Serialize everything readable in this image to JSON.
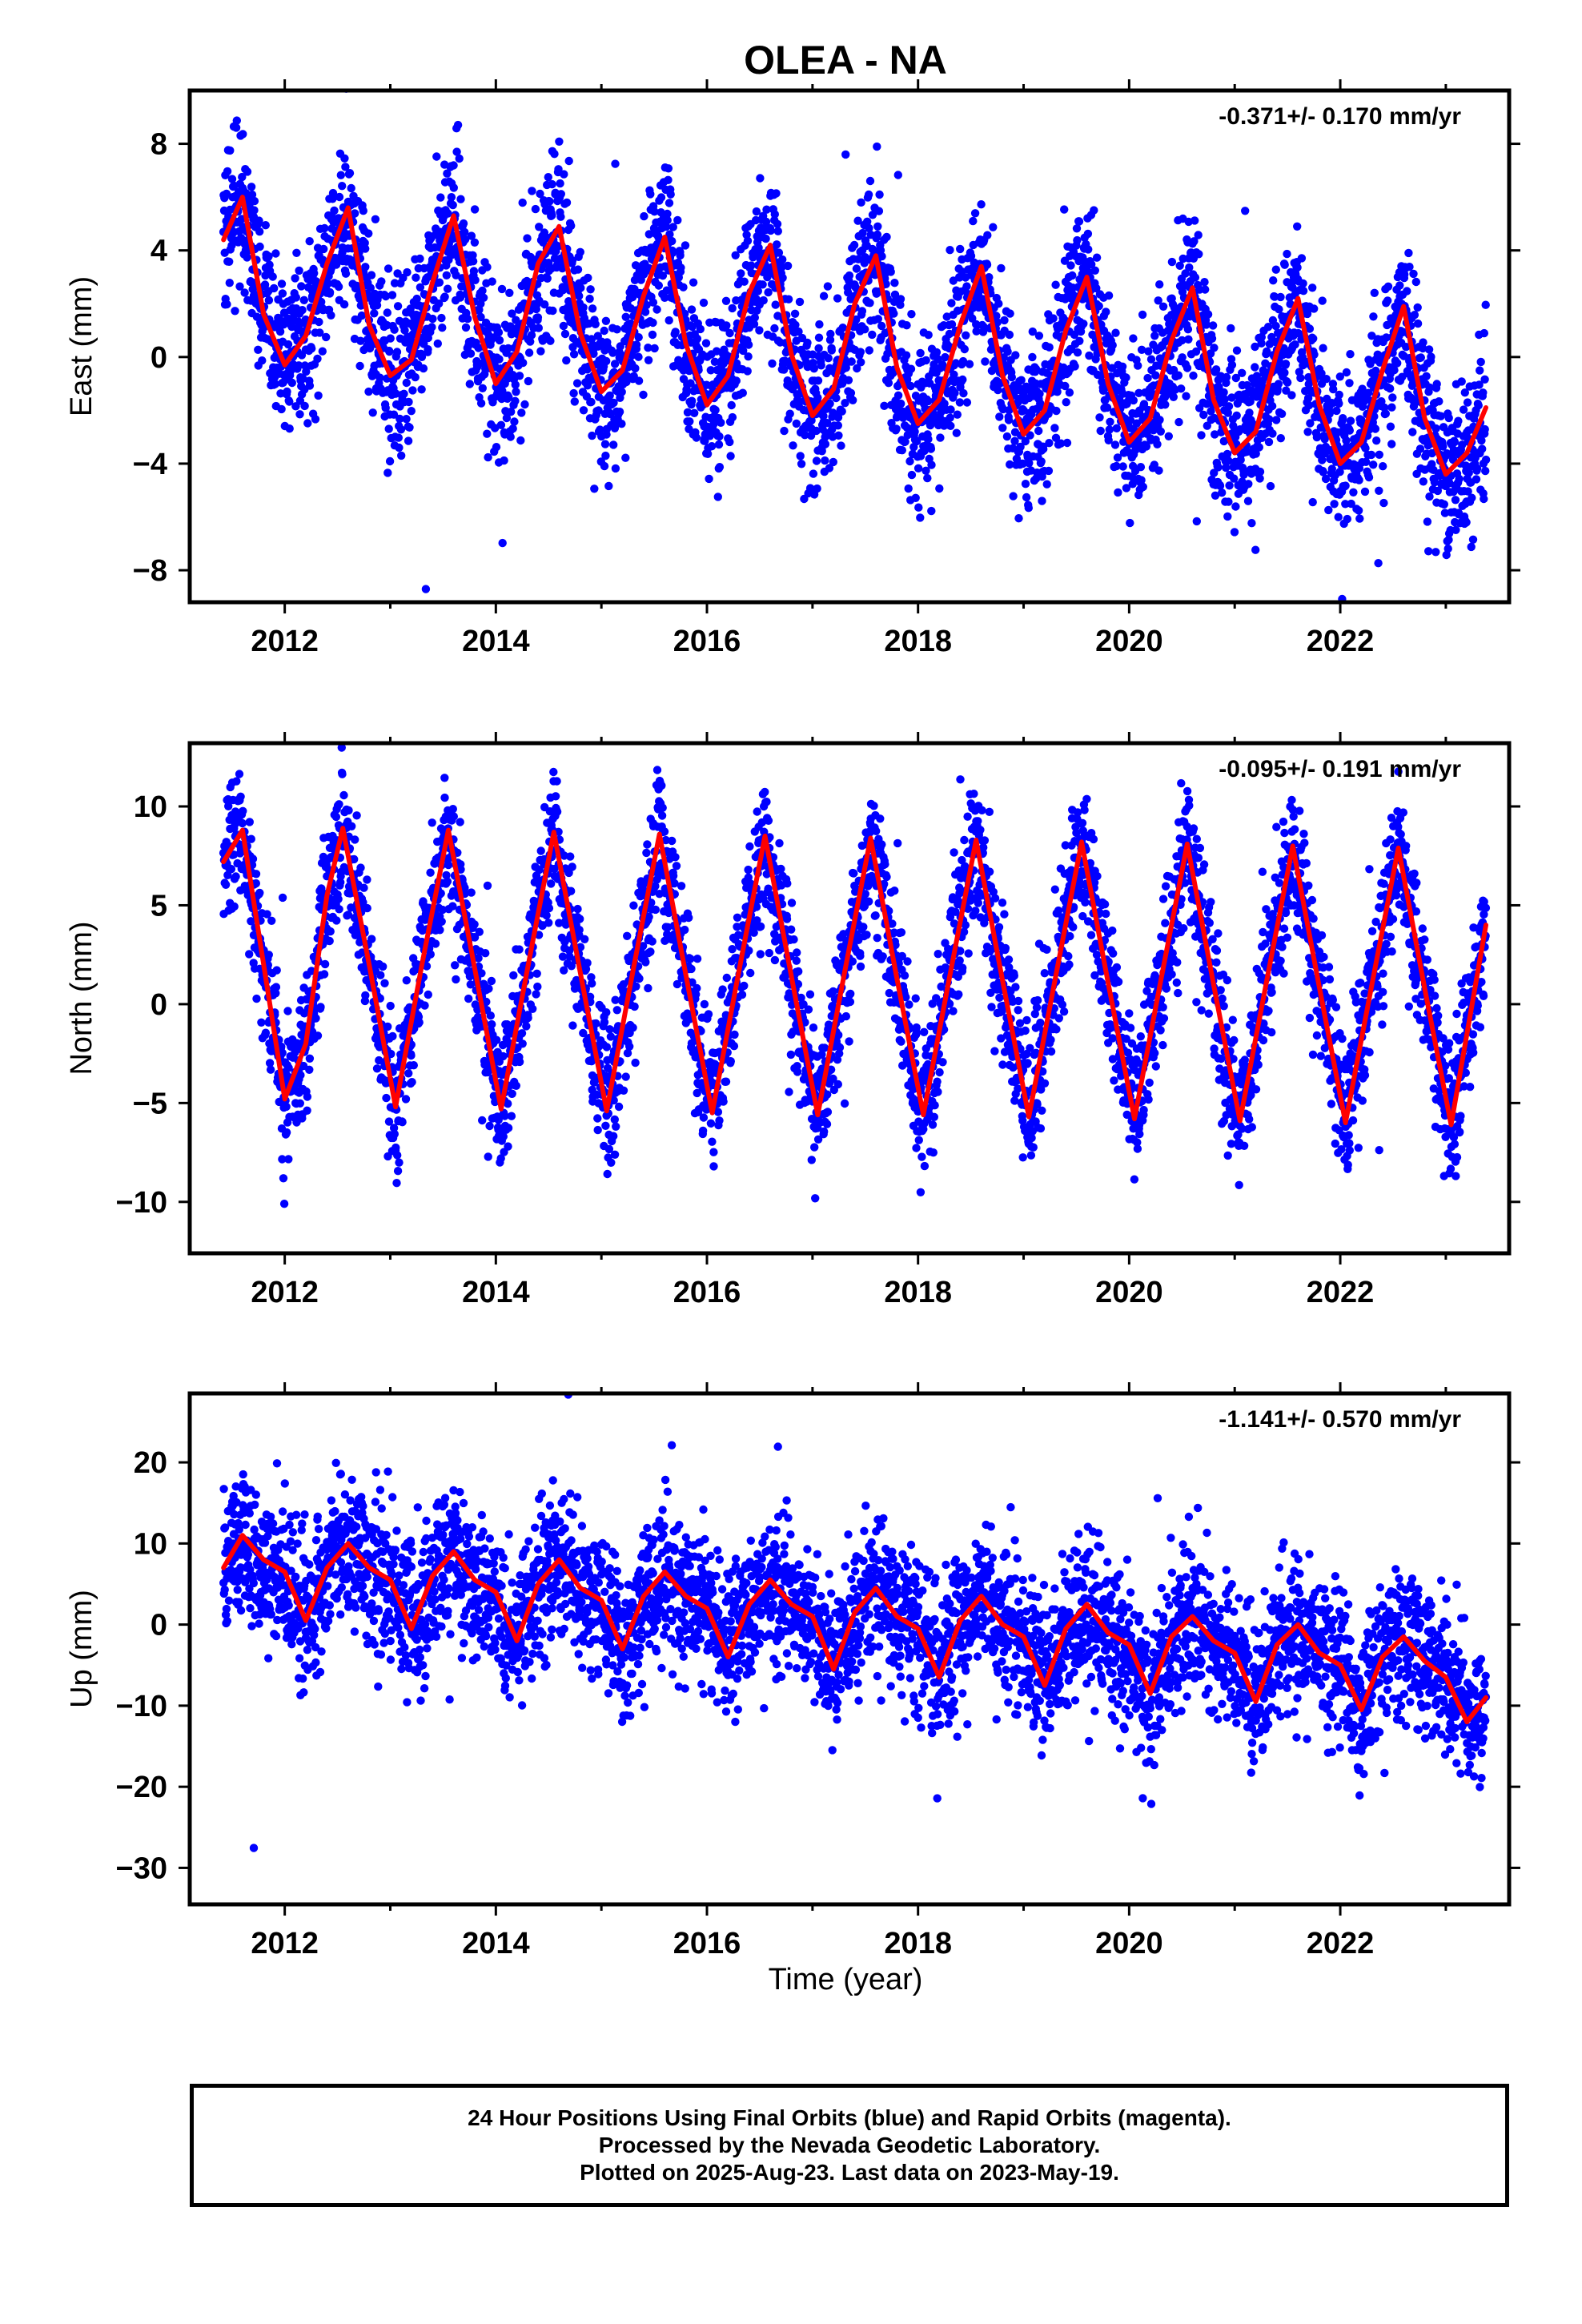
{
  "figure": {
    "title": "OLEA - NA",
    "xlabel": "Time (year)"
  },
  "chart_data": [
    {
      "type": "scatter",
      "ylabel": "East (mm)",
      "rate_text": "-0.371+/- 0.170 mm/yr",
      "xlim": [
        2011.1,
        2023.6
      ],
      "ylim": [
        -9.2,
        10.0
      ],
      "xticks": [
        2012,
        2014,
        2016,
        2018,
        2020,
        2022
      ],
      "yticks": [
        -8,
        -4,
        0,
        4,
        8
      ],
      "ytick_labels": [
        "−8",
        "−4",
        "0",
        "4",
        "8"
      ],
      "trend": {
        "offset": 1.2,
        "rate": -0.371,
        "amplitude": 3.3,
        "peak_phase": 0.58,
        "noise": 1.5
      },
      "series": [
        {
          "role": "daily positions",
          "color": "#0000ff",
          "x": [
            2011.42,
            2011.6,
            2011.8,
            2012.0,
            2012.2,
            2012.4,
            2012.6,
            2012.8,
            2013.0,
            2013.2,
            2013.4,
            2013.6,
            2013.8,
            2014.0,
            2014.2,
            2014.4,
            2014.6,
            2014.8,
            2015.0,
            2015.2,
            2015.4,
            2015.6,
            2015.8,
            2016.0,
            2016.2,
            2016.4,
            2016.6,
            2016.8,
            2017.0,
            2017.2,
            2017.4,
            2017.6,
            2017.8,
            2018.0,
            2018.2,
            2018.4,
            2018.6,
            2018.8,
            2019.0,
            2019.2,
            2019.4,
            2019.6,
            2019.8,
            2020.0,
            2020.2,
            2020.4,
            2020.6,
            2020.8,
            2021.0,
            2021.2,
            2021.4,
            2021.6,
            2021.8,
            2022.0,
            2022.2,
            2022.4,
            2022.6,
            2022.8,
            2023.0,
            2023.2,
            2023.38
          ],
          "y": [
            4.4,
            6.0,
            1.6,
            -0.3,
            0.8,
            3.5,
            5.6,
            1.2,
            -0.7,
            -0.1,
            2.8,
            5.3,
            1.5,
            -1.0,
            0.2,
            3.5,
            4.9,
            0.9,
            -1.3,
            -0.5,
            2.3,
            4.5,
            0.5,
            -1.8,
            -0.7,
            2.4,
            4.2,
            0.1,
            -2.2,
            -1.2,
            2.0,
            3.8,
            -0.4,
            -2.5,
            -1.6,
            1.2,
            3.4,
            -0.7,
            -2.9,
            -2.0,
            1.0,
            3.0,
            -1.0,
            -3.2,
            -2.3,
            0.6,
            2.6,
            -1.6,
            -3.6,
            -2.8,
            0.2,
            2.2,
            -1.8,
            -4.0,
            -3.2,
            -0.5,
            1.9,
            -2.3,
            -4.4,
            -3.6,
            -1.9
          ]
        },
        {
          "role": "fitted model",
          "color": "#ff0000",
          "x": [
            2011.42,
            2011.6,
            2011.8,
            2012.0,
            2012.2,
            2012.4,
            2012.6,
            2012.8,
            2013.0,
            2013.2,
            2013.4,
            2013.6,
            2013.8,
            2014.0,
            2014.2,
            2014.4,
            2014.6,
            2014.8,
            2015.0,
            2015.2,
            2015.4,
            2015.6,
            2015.8,
            2016.0,
            2016.2,
            2016.4,
            2016.6,
            2016.8,
            2017.0,
            2017.2,
            2017.4,
            2017.6,
            2017.8,
            2018.0,
            2018.2,
            2018.4,
            2018.6,
            2018.8,
            2019.0,
            2019.2,
            2019.4,
            2019.6,
            2019.8,
            2020.0,
            2020.2,
            2020.4,
            2020.6,
            2020.8,
            2021.0,
            2021.2,
            2021.4,
            2021.6,
            2021.8,
            2022.0,
            2022.2,
            2022.4,
            2022.6,
            2022.8,
            2023.0,
            2023.2,
            2023.38
          ],
          "y": [
            4.4,
            6.0,
            1.6,
            -0.3,
            0.8,
            3.5,
            5.6,
            1.2,
            -0.7,
            -0.1,
            2.8,
            5.3,
            1.5,
            -1.0,
            0.2,
            3.5,
            4.9,
            0.9,
            -1.3,
            -0.5,
            2.3,
            4.5,
            0.5,
            -1.8,
            -0.7,
            2.4,
            4.2,
            0.1,
            -2.2,
            -1.2,
            2.0,
            3.8,
            -0.4,
            -2.5,
            -1.6,
            1.2,
            3.4,
            -0.7,
            -2.9,
            -2.0,
            1.0,
            3.0,
            -1.0,
            -3.2,
            -2.3,
            0.6,
            2.6,
            -1.6,
            -3.6,
            -2.8,
            0.2,
            2.2,
            -1.8,
            -4.0,
            -3.2,
            -0.5,
            1.9,
            -2.3,
            -4.4,
            -3.6,
            -1.9
          ]
        }
      ]
    },
    {
      "type": "scatter",
      "ylabel": "North (mm)",
      "rate_text": "-0.095+/- 0.191 mm/yr",
      "xlim": [
        2011.1,
        2023.6
      ],
      "ylim": [
        -12.6,
        13.2
      ],
      "xticks": [
        2012,
        2014,
        2016,
        2018,
        2020,
        2022
      ],
      "yticks": [
        -10,
        -5,
        0,
        5,
        10
      ],
      "ytick_labels": [
        "−10",
        "−5",
        "0",
        "5",
        "10"
      ],
      "trend": {
        "offset": 1.8,
        "rate": -0.095,
        "amplitude": 7.0,
        "peak_phase": 0.52,
        "noise": 1.7
      },
      "series": [
        {
          "role": "daily positions",
          "color": "#0000ff",
          "x": [
            2011.42,
            2011.6,
            2011.8,
            2012.0,
            2012.2,
            2012.4,
            2012.55,
            2012.8,
            2013.05,
            2013.3,
            2013.55,
            2013.8,
            2014.05,
            2014.3,
            2014.55,
            2014.8,
            2015.05,
            2015.3,
            2015.55,
            2015.8,
            2016.05,
            2016.3,
            2016.55,
            2016.8,
            2017.05,
            2017.3,
            2017.55,
            2017.8,
            2018.05,
            2018.3,
            2018.55,
            2018.8,
            2019.05,
            2019.3,
            2019.55,
            2019.8,
            2020.05,
            2020.3,
            2020.55,
            2020.8,
            2021.05,
            2021.3,
            2021.55,
            2021.8,
            2022.05,
            2022.3,
            2022.55,
            2022.8,
            2023.05,
            2023.38
          ],
          "y": [
            7.2,
            8.8,
            2.0,
            -4.8,
            -2.0,
            5.5,
            8.9,
            2.0,
            -5.2,
            2.0,
            8.8,
            1.8,
            -5.3,
            1.8,
            8.7,
            1.6,
            -5.4,
            1.7,
            8.6,
            1.5,
            -5.5,
            1.6,
            8.5,
            1.4,
            -5.6,
            1.5,
            8.4,
            1.3,
            -5.6,
            1.4,
            8.3,
            1.2,
            -5.7,
            1.3,
            8.2,
            1.1,
            -5.8,
            1.2,
            8.1,
            1.0,
            -5.9,
            1.1,
            8.0,
            0.9,
            -6.0,
            1.0,
            7.9,
            0.8,
            -6.1,
            4.0
          ]
        },
        {
          "role": "fitted model",
          "color": "#ff0000",
          "x": [
            2011.42,
            2011.6,
            2011.8,
            2012.0,
            2012.2,
            2012.4,
            2012.55,
            2012.8,
            2013.05,
            2013.3,
            2013.55,
            2013.8,
            2014.05,
            2014.3,
            2014.55,
            2014.8,
            2015.05,
            2015.3,
            2015.55,
            2015.8,
            2016.05,
            2016.3,
            2016.55,
            2016.8,
            2017.05,
            2017.3,
            2017.55,
            2017.8,
            2018.05,
            2018.3,
            2018.55,
            2018.8,
            2019.05,
            2019.3,
            2019.55,
            2019.8,
            2020.05,
            2020.3,
            2020.55,
            2020.8,
            2021.05,
            2021.3,
            2021.55,
            2021.8,
            2022.05,
            2022.3,
            2022.55,
            2022.8,
            2023.05,
            2023.38
          ],
          "y": [
            7.2,
            8.8,
            2.0,
            -4.8,
            -2.0,
            5.5,
            8.9,
            2.0,
            -5.2,
            2.0,
            8.8,
            1.8,
            -5.3,
            1.8,
            8.7,
            1.6,
            -5.4,
            1.7,
            8.6,
            1.5,
            -5.5,
            1.6,
            8.5,
            1.4,
            -5.6,
            1.5,
            8.4,
            1.3,
            -5.6,
            1.4,
            8.3,
            1.2,
            -5.7,
            1.3,
            8.2,
            1.1,
            -5.8,
            1.2,
            8.1,
            1.0,
            -5.9,
            1.1,
            8.0,
            0.9,
            -6.0,
            1.0,
            7.9,
            0.8,
            -6.1,
            4.0
          ]
        }
      ]
    },
    {
      "type": "scatter",
      "ylabel": "Up (mm)",
      "rate_text": "-1.141+/- 0.570 mm/yr",
      "xlim": [
        2011.1,
        2023.6
      ],
      "ylim": [
        -34.5,
        28.5
      ],
      "xticks": [
        2012,
        2014,
        2016,
        2018,
        2020,
        2022
      ],
      "yticks": [
        -30,
        -20,
        -10,
        0,
        10,
        20
      ],
      "ytick_labels": [
        "−30",
        "−20",
        "−10",
        "0",
        "10",
        "20"
      ],
      "trend": {
        "offset": 6.5,
        "rate": -1.141,
        "amplitude": 4.5,
        "peak_phase": 0.6,
        "noise": 4.6
      },
      "series": [
        {
          "role": "daily positions",
          "color": "#0000ff",
          "x": [
            2011.42,
            2011.6,
            2011.8,
            2012.0,
            2012.2,
            2012.4,
            2012.6,
            2012.8,
            2013.0,
            2013.2,
            2013.4,
            2013.6,
            2013.8,
            2014.0,
            2014.2,
            2014.4,
            2014.6,
            2014.8,
            2015.0,
            2015.2,
            2015.4,
            2015.6,
            2015.8,
            2016.0,
            2016.2,
            2016.4,
            2016.6,
            2016.8,
            2017.0,
            2017.2,
            2017.4,
            2017.6,
            2017.8,
            2018.0,
            2018.2,
            2018.4,
            2018.6,
            2018.8,
            2019.0,
            2019.2,
            2019.4,
            2019.6,
            2019.8,
            2020.0,
            2020.2,
            2020.4,
            2020.6,
            2020.8,
            2021.0,
            2021.2,
            2021.4,
            2021.6,
            2021.8,
            2022.0,
            2022.2,
            2022.4,
            2022.6,
            2022.8,
            2023.0,
            2023.2,
            2023.38
          ],
          "y": [
            7.0,
            11.0,
            8.0,
            6.5,
            0.5,
            7.0,
            10.0,
            7.0,
            5.5,
            -0.5,
            6.0,
            9.0,
            5.5,
            4.0,
            -2.0,
            5.0,
            8.0,
            4.5,
            3.0,
            -3.0,
            3.5,
            6.5,
            3.5,
            2.0,
            -4.0,
            2.5,
            5.5,
            2.5,
            1.0,
            -5.5,
            1.5,
            4.5,
            1.0,
            -0.5,
            -6.5,
            0.5,
            3.5,
            0.0,
            -1.5,
            -7.5,
            -0.5,
            2.5,
            -1.0,
            -2.5,
            -8.5,
            -1.5,
            1.0,
            -2.0,
            -3.5,
            -9.5,
            -2.5,
            0.0,
            -3.5,
            -5.0,
            -10.5,
            -4.0,
            -1.5,
            -4.5,
            -6.5,
            -12.0,
            -9.0
          ]
        },
        {
          "role": "fitted model",
          "color": "#ff0000",
          "x": [
            2011.42,
            2011.6,
            2011.8,
            2012.0,
            2012.2,
            2012.4,
            2012.6,
            2012.8,
            2013.0,
            2013.2,
            2013.4,
            2013.6,
            2013.8,
            2014.0,
            2014.2,
            2014.4,
            2014.6,
            2014.8,
            2015.0,
            2015.2,
            2015.4,
            2015.6,
            2015.8,
            2016.0,
            2016.2,
            2016.4,
            2016.6,
            2016.8,
            2017.0,
            2017.2,
            2017.4,
            2017.6,
            2017.8,
            2018.0,
            2018.2,
            2018.4,
            2018.6,
            2018.8,
            2019.0,
            2019.2,
            2019.4,
            2019.6,
            2019.8,
            2020.0,
            2020.2,
            2020.4,
            2020.6,
            2020.8,
            2021.0,
            2021.2,
            2021.4,
            2021.6,
            2021.8,
            2022.0,
            2022.2,
            2022.4,
            2022.6,
            2022.8,
            2023.0,
            2023.2,
            2023.38
          ],
          "y": [
            7.0,
            11.0,
            8.0,
            6.5,
            0.5,
            7.0,
            10.0,
            7.0,
            5.5,
            -0.5,
            6.0,
            9.0,
            5.5,
            4.0,
            -2.0,
            5.0,
            8.0,
            4.5,
            3.0,
            -3.0,
            3.5,
            6.5,
            3.5,
            2.0,
            -4.0,
            2.5,
            5.5,
            2.5,
            1.0,
            -5.5,
            1.5,
            4.5,
            1.0,
            -0.5,
            -6.5,
            0.5,
            3.5,
            0.0,
            -1.5,
            -7.5,
            -0.5,
            2.5,
            -1.0,
            -2.5,
            -8.5,
            -1.5,
            1.0,
            -2.0,
            -3.5,
            -9.5,
            -2.5,
            0.0,
            -3.5,
            -5.0,
            -10.5,
            -4.0,
            -1.5,
            -4.5,
            -6.5,
            -12.0,
            -9.0
          ]
        }
      ]
    }
  ],
  "caption": {
    "line1": "24 Hour Positions Using Final Orbits (blue) and Rapid Orbits (magenta).",
    "line2": "Processed by the Nevada Geodetic Laboratory.",
    "line3": "Plotted on 2025-Aug-23. Last data on 2023-May-19."
  }
}
